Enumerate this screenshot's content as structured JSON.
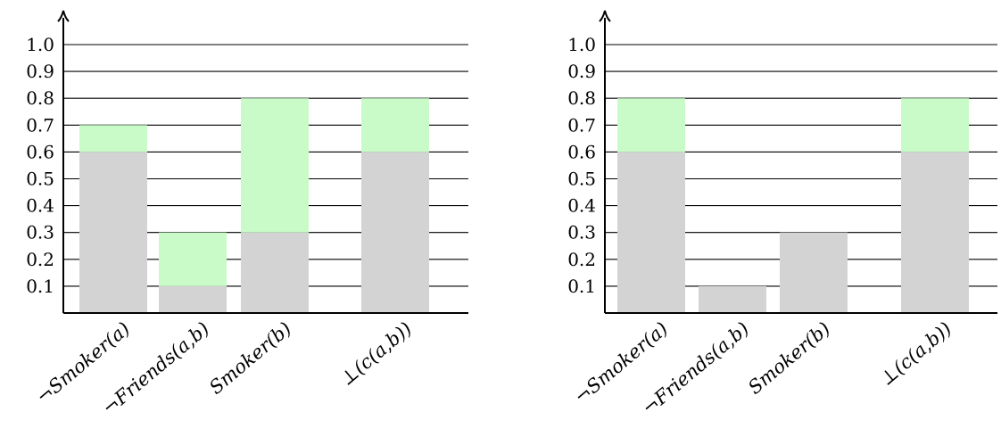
{
  "colors": {
    "base": "#d3d3d3",
    "increment": "#c8fbc8",
    "axis": "#000000"
  },
  "chart_data": [
    {
      "type": "bar",
      "stacked": true,
      "categories": [
        "¬Smoker(a)",
        "¬Friends(a,b)",
        "Smoker(b)",
        "⊥(c(a,b))"
      ],
      "series": [
        {
          "values": [
            0.6,
            0.1,
            0.3,
            0.6
          ]
        },
        {
          "values": [
            0.1,
            0.2,
            0.5,
            0.2
          ]
        }
      ],
      "yticks": [
        "0.1",
        "0.2",
        "0.3",
        "0.4",
        "0.5",
        "0.6",
        "0.7",
        "0.8",
        "0.9",
        "1.0"
      ],
      "ylim": [
        0,
        1.1
      ],
      "grid": true,
      "title": "",
      "xlabel": "",
      "ylabel": ""
    },
    {
      "type": "bar",
      "stacked": true,
      "categories": [
        "¬Smoker(a)",
        "¬Friends(a,b)",
        "Smoker(b)",
        "⊥(c(a,b))"
      ],
      "series": [
        {
          "values": [
            0.6,
            0.1,
            0.3,
            0.6
          ]
        },
        {
          "values": [
            0.2,
            0.0,
            0.0,
            0.2
          ]
        }
      ],
      "yticks": [
        "0.1",
        "0.2",
        "0.3",
        "0.4",
        "0.5",
        "0.6",
        "0.7",
        "0.8",
        "0.9",
        "1.0"
      ],
      "ylim": [
        0,
        1.1
      ],
      "grid": true,
      "title": "",
      "xlabel": "",
      "ylabel": ""
    }
  ]
}
